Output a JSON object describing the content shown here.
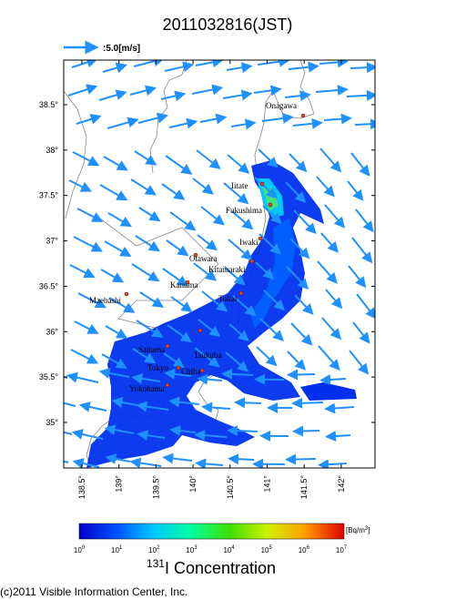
{
  "title": "2011032816(JST)",
  "wind_scale": ":5.0[m/s]",
  "lat_ticks": [
    {
      "value": 38.5,
      "label": "38.5°"
    },
    {
      "value": 38,
      "label": "38°"
    },
    {
      "value": 37.5,
      "label": "37.5°"
    },
    {
      "value": 37,
      "label": "37°"
    },
    {
      "value": 36.5,
      "label": "36.5°"
    },
    {
      "value": 36,
      "label": "36°"
    },
    {
      "value": 35.5,
      "label": "35.5°"
    },
    {
      "value": 35,
      "label": "35°"
    }
  ],
  "lon_ticks": [
    {
      "value": 138.5,
      "label": "138.5°"
    },
    {
      "value": 139,
      "label": "139°"
    },
    {
      "value": 139.5,
      "label": "139.5°"
    },
    {
      "value": 140,
      "label": "140°"
    },
    {
      "value": 140.5,
      "label": "140.5°"
    },
    {
      "value": 141,
      "label": "141°"
    },
    {
      "value": 141.5,
      "label": "141.5°"
    },
    {
      "value": 142,
      "label": "142°"
    }
  ],
  "cities": [
    "Onagawa",
    "Iitate",
    "Fukushima",
    "Iwaki",
    "Otawara",
    "Kitaibaraki",
    "Kanuma",
    "Tokai",
    "Maebashi",
    "Tsukuba",
    "Saitama",
    "Tokyo",
    "Chiba",
    "Yokohama"
  ],
  "colorbar": {
    "ticks": [
      {
        "base": "10",
        "exp": "0"
      },
      {
        "base": "10",
        "exp": "1"
      },
      {
        "base": "10",
        "exp": "2"
      },
      {
        "base": "10",
        "exp": "3"
      },
      {
        "base": "10",
        "exp": "4"
      },
      {
        "base": "10",
        "exp": "5"
      },
      {
        "base": "10",
        "exp": "6"
      },
      {
        "base": "10",
        "exp": "7"
      }
    ],
    "unit": {
      "text": "[Bq/m",
      "sup": "3",
      "end": "]"
    }
  },
  "quantity": {
    "isotope": "131",
    "label": "I Concentration"
  },
  "copyright": "(c)2011 Visible Information Center, Inc."
}
